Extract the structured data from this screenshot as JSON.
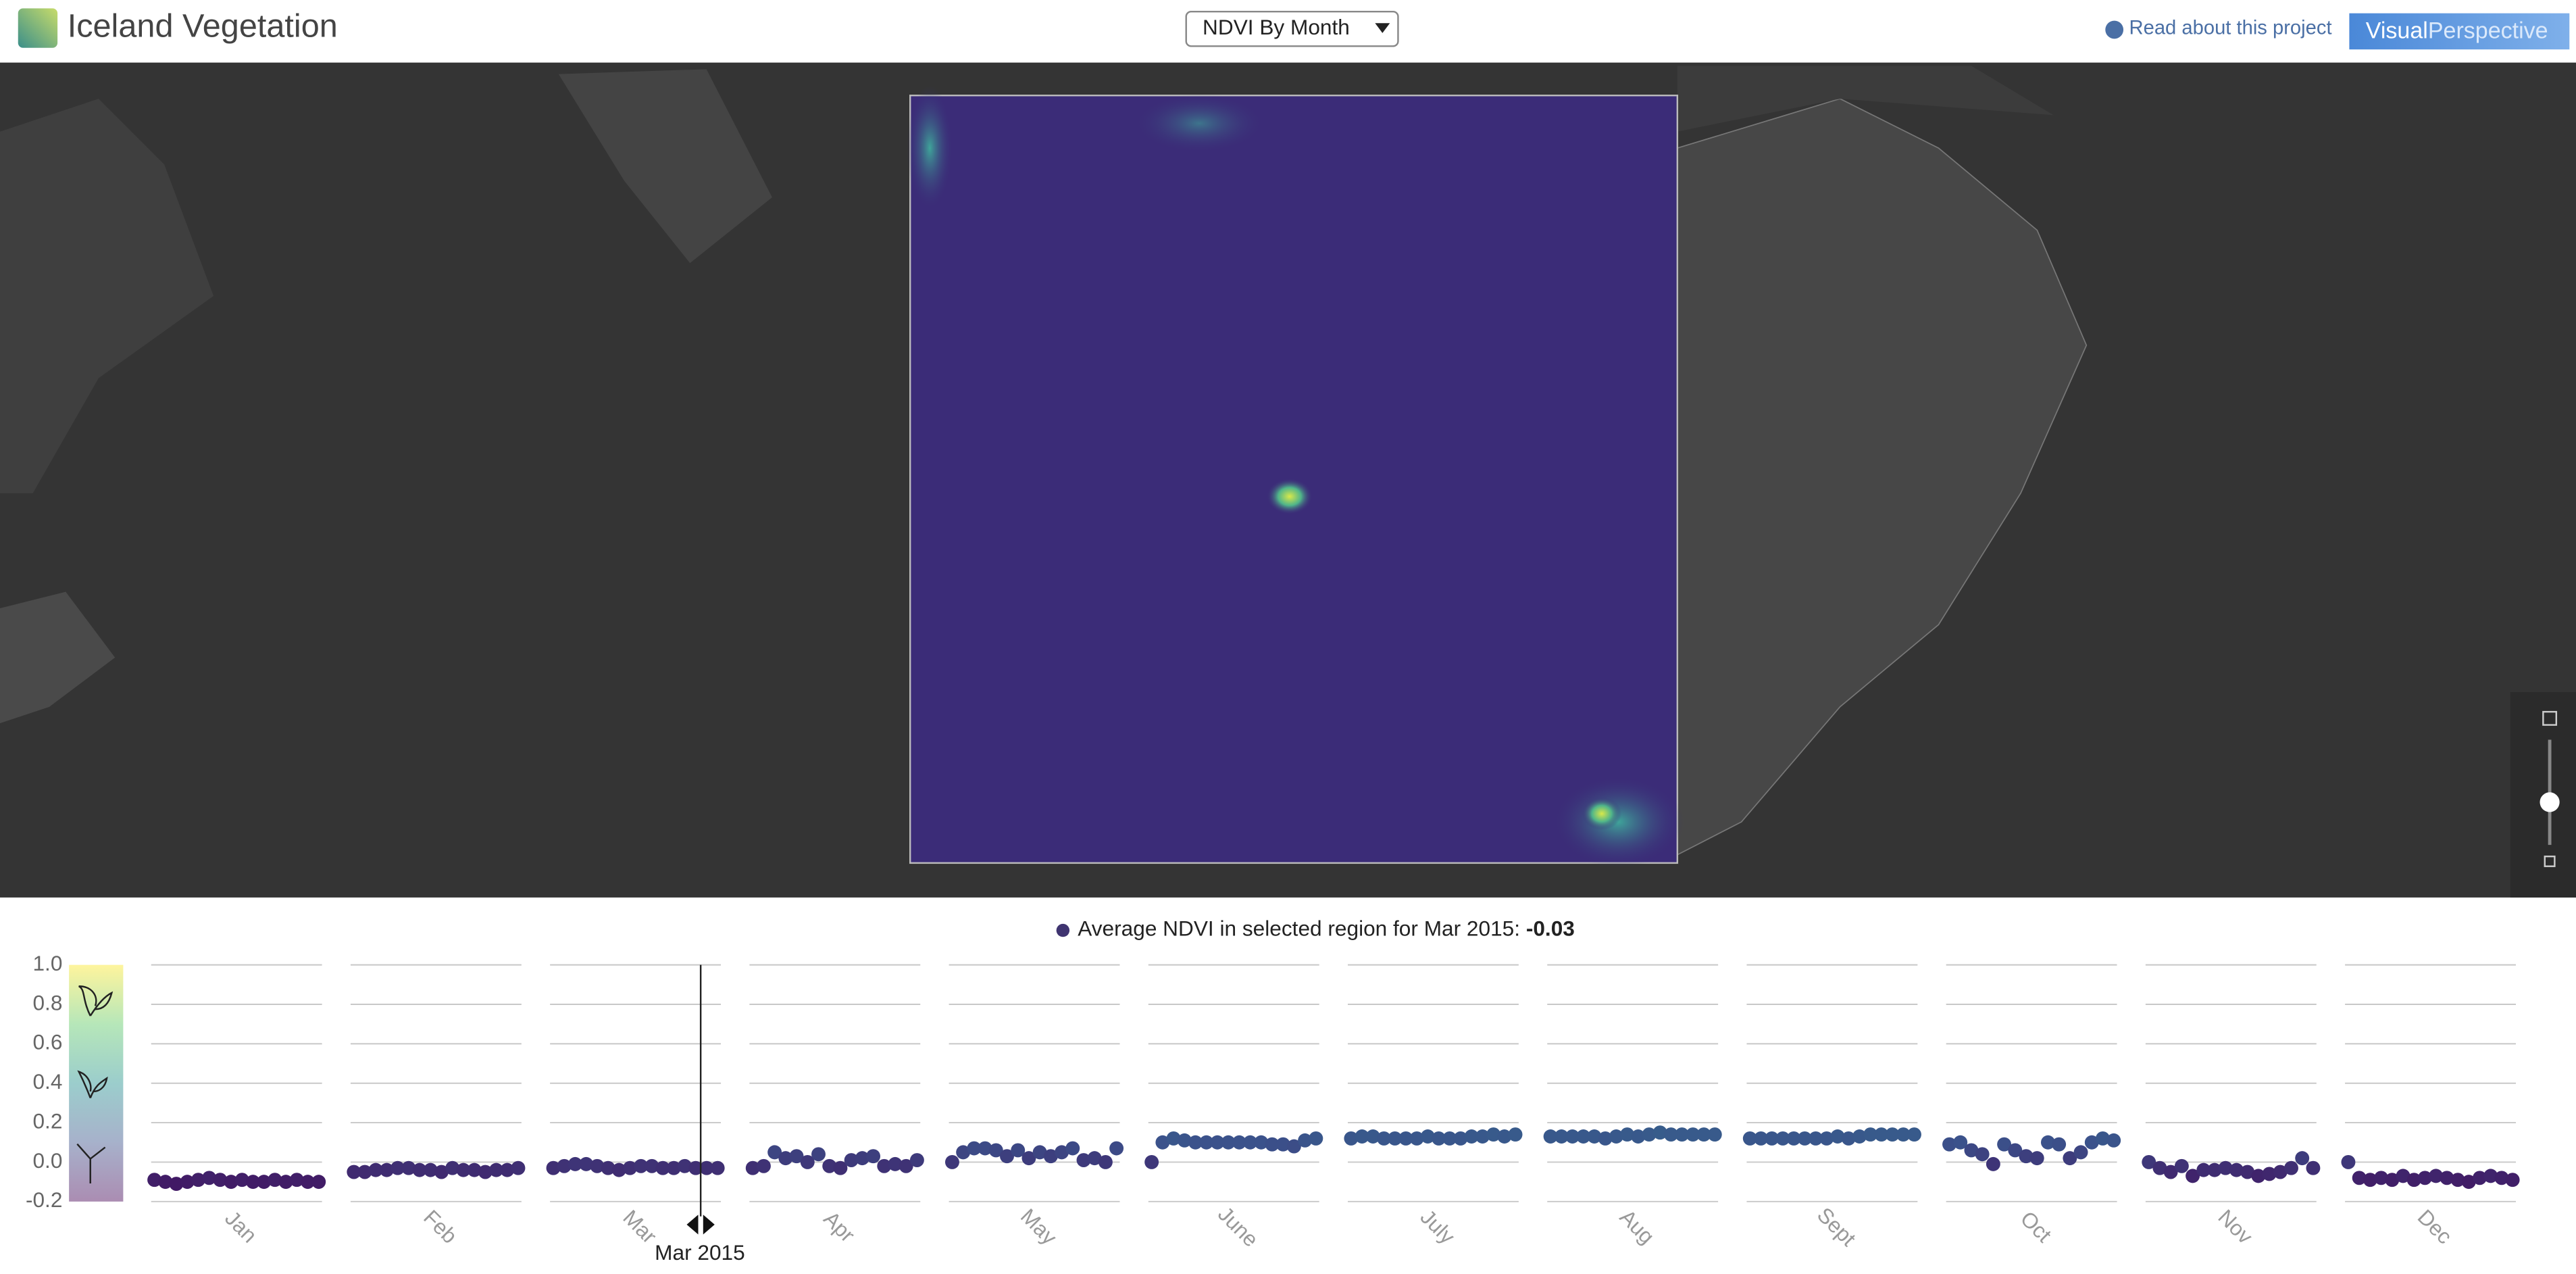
{
  "header": {
    "title": "Iceland Vegetation",
    "dropdown": "NDVI By Month",
    "link": "Read about this project",
    "logo": [
      "Visual",
      "Perspective"
    ]
  },
  "caption": {
    "text": "Average NDVI in selected region for Mar 2015:",
    "value": -0.03
  },
  "cursor": {
    "label": "Mar 2015"
  },
  "chart_data": {
    "type": "scatter",
    "categories": [
      "Jan",
      "Feb",
      "Mar",
      "Apr",
      "May",
      "June",
      "July",
      "Aug",
      "Sept",
      "Oct",
      "Nov",
      "Dec"
    ],
    "values": [
      [
        -0.09,
        -0.1,
        -0.11,
        -0.1,
        -0.09,
        -0.08,
        -0.09,
        -0.1,
        -0.09,
        -0.1,
        -0.1,
        -0.09,
        -0.1,
        -0.09,
        -0.1,
        -0.1
      ],
      [
        -0.05,
        -0.05,
        -0.04,
        -0.04,
        -0.03,
        -0.03,
        -0.04,
        -0.04,
        -0.05,
        -0.03,
        -0.04,
        -0.04,
        -0.05,
        -0.04,
        -0.04,
        -0.03
      ],
      [
        -0.03,
        -0.02,
        -0.01,
        -0.01,
        -0.02,
        -0.03,
        -0.04,
        -0.03,
        -0.02,
        -0.02,
        -0.03,
        -0.03,
        -0.02,
        -0.03,
        -0.03,
        -0.03
      ],
      [
        -0.03,
        -0.02,
        0.05,
        0.02,
        0.03,
        0.0,
        0.04,
        -0.02,
        -0.03,
        0.01,
        0.02,
        0.03,
        -0.02,
        -0.01,
        -0.02,
        0.01
      ],
      [
        0.0,
        0.05,
        0.07,
        0.07,
        0.06,
        0.03,
        0.06,
        0.02,
        0.05,
        0.03,
        0.05,
        0.07,
        0.01,
        0.02,
        0.0,
        0.07
      ],
      [
        0.0,
        0.1,
        0.12,
        0.11,
        0.1,
        0.1,
        0.1,
        0.1,
        0.1,
        0.1,
        0.1,
        0.09,
        0.09,
        0.08,
        0.11,
        0.12
      ],
      [
        0.12,
        0.13,
        0.13,
        0.12,
        0.12,
        0.12,
        0.12,
        0.13,
        0.12,
        0.12,
        0.12,
        0.13,
        0.13,
        0.14,
        0.13,
        0.14
      ],
      [
        0.13,
        0.13,
        0.13,
        0.13,
        0.13,
        0.12,
        0.13,
        0.14,
        0.13,
        0.14,
        0.15,
        0.14,
        0.14,
        0.14,
        0.14,
        0.14
      ],
      [
        0.12,
        0.12,
        0.12,
        0.12,
        0.12,
        0.12,
        0.12,
        0.12,
        0.13,
        0.12,
        0.13,
        0.14,
        0.14,
        0.14,
        0.14,
        0.14
      ],
      [
        0.09,
        0.1,
        0.06,
        0.04,
        -0.01,
        0.09,
        0.06,
        0.03,
        0.02,
        0.1,
        0.09,
        0.02,
        0.05,
        0.1,
        0.12,
        0.11
      ],
      [
        0.0,
        -0.03,
        -0.05,
        -0.02,
        -0.07,
        -0.04,
        -0.04,
        -0.03,
        -0.04,
        -0.05,
        -0.07,
        -0.06,
        -0.05,
        -0.03,
        0.02,
        -0.03
      ],
      [
        0.0,
        -0.08,
        -0.09,
        -0.08,
        -0.09,
        -0.07,
        -0.09,
        -0.08,
        -0.07,
        -0.08,
        -0.09,
        -0.1,
        -0.08,
        -0.07,
        -0.08,
        -0.09
      ]
    ],
    "ylim": [
      -0.2,
      1.0
    ],
    "yticks": [
      {
        "value": 1.0,
        "label": "1.0"
      },
      0.8,
      0.6,
      0.4,
      0.2,
      {
        "value": 0.0,
        "label": "0.0"
      },
      -0.2
    ],
    "colorscale": [
      "#440154",
      "#3b528b",
      "#21908d",
      "#5dc963",
      "#fde725"
    ],
    "grid": true
  }
}
